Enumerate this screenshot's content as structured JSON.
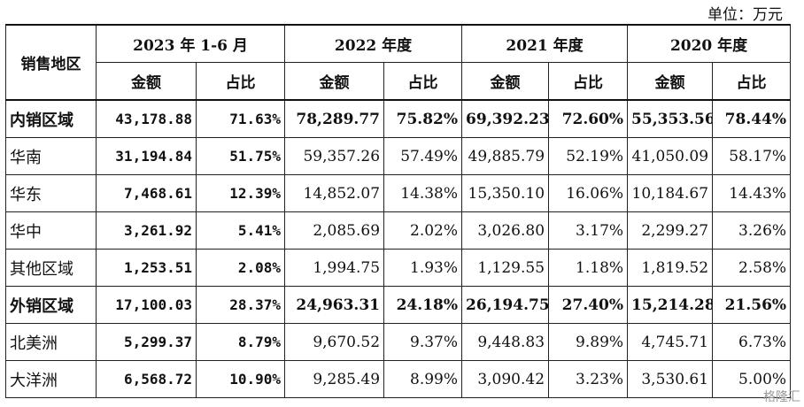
{
  "unit_label": "单位：万元",
  "header": {
    "region": "销售地区",
    "periods": [
      "2023 年 1-6 月",
      "2022 年度",
      "2021 年度",
      "2020 年度"
    ],
    "amount": "金额",
    "ratio": "占比"
  },
  "rows": [
    {
      "region": "内销区域",
      "bold": true,
      "values": [
        "43,178.88",
        "71.63%",
        "78,289.77",
        "75.82%",
        "69,392.23",
        "72.60%",
        "55,353.56",
        "78.44%"
      ]
    },
    {
      "region": "华南",
      "bold": false,
      "values": [
        "31,194.84",
        "51.75%",
        "59,357.26",
        "57.49%",
        "49,885.79",
        "52.19%",
        "41,050.09",
        "58.17%"
      ]
    },
    {
      "region": "华东",
      "bold": false,
      "values": [
        "7,468.61",
        "12.39%",
        "14,852.07",
        "14.38%",
        "15,350.10",
        "16.06%",
        "10,184.67",
        "14.43%"
      ]
    },
    {
      "region": "华中",
      "bold": false,
      "values": [
        "3,261.92",
        "5.41%",
        "2,085.69",
        "2.02%",
        "3,026.80",
        "3.17%",
        "2,299.27",
        "3.26%"
      ]
    },
    {
      "region": "其他区域",
      "bold": false,
      "values": [
        "1,253.51",
        "2.08%",
        "1,994.75",
        "1.93%",
        "1,129.55",
        "1.18%",
        "1,819.52",
        "2.58%"
      ]
    },
    {
      "region": "外销区域",
      "bold": true,
      "values": [
        "17,100.03",
        "28.37%",
        "24,963.31",
        "24.18%",
        "26,194.75",
        "27.40%",
        "15,214.28",
        "21.56%"
      ]
    },
    {
      "region": "北美洲",
      "bold": false,
      "values": [
        "5,299.37",
        "8.79%",
        "9,670.52",
        "9.37%",
        "9,448.83",
        "9.89%",
        "4,745.71",
        "6.73%"
      ]
    },
    {
      "region": "大洋洲",
      "bold": false,
      "values": [
        "6,568.72",
        "10.90%",
        "9,285.49",
        "8.99%",
        "3,090.42",
        "3.23%",
        "3,530.61",
        "5.00%"
      ]
    }
  ],
  "watermark": "格隆汇"
}
